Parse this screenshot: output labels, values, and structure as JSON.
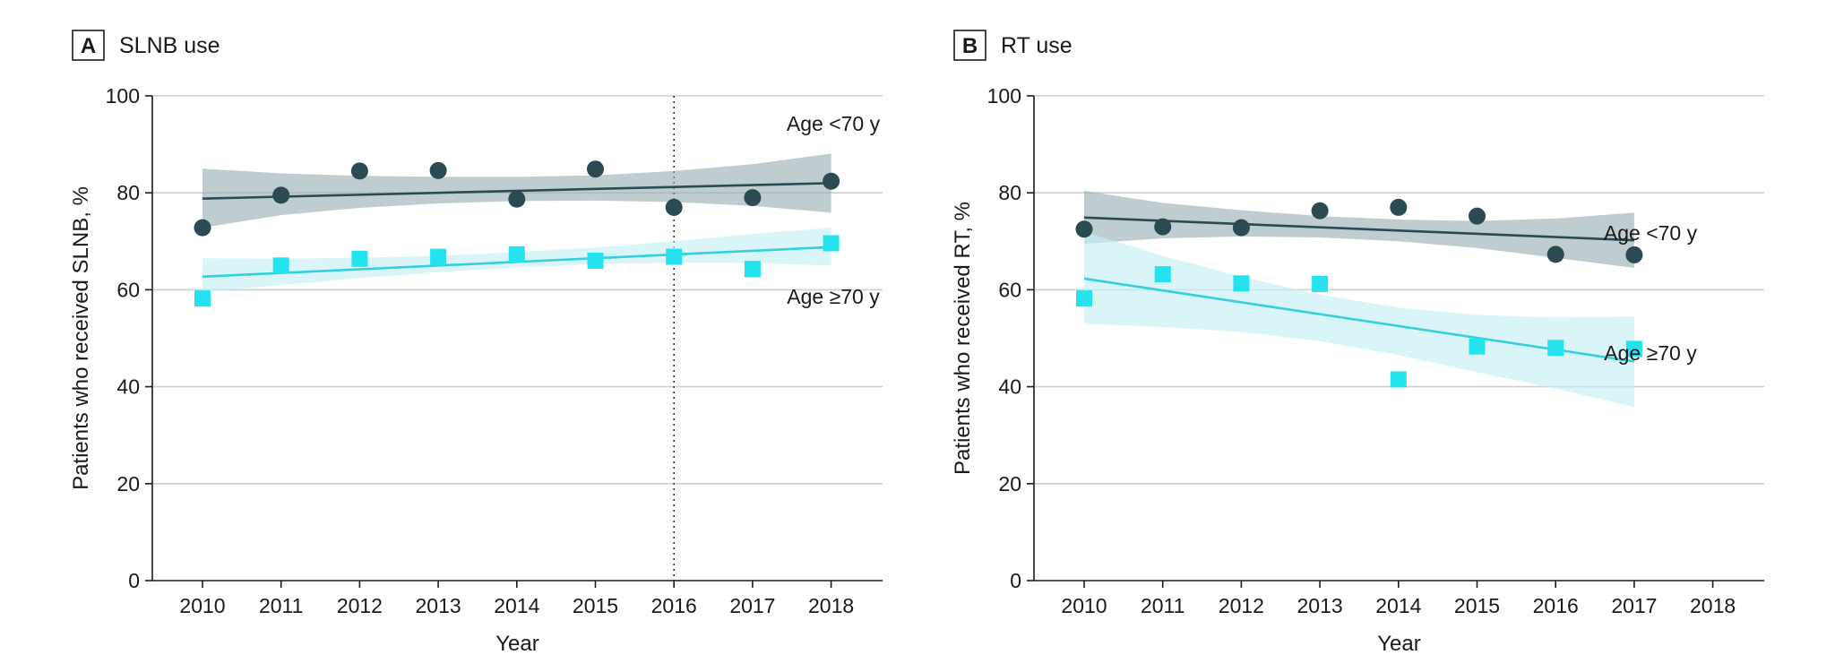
{
  "chart_data": [
    {
      "type": "scatter",
      "panel": "A",
      "title": "SLNB use",
      "xlabel": "Year",
      "ylabel": "Patients who received SLNB, %",
      "x": [
        2010,
        2011,
        2012,
        2013,
        2014,
        2015,
        2016,
        2017,
        2018
      ],
      "xlim": [
        2009.4,
        2018.7
      ],
      "ylim": [
        0,
        100
      ],
      "yticks": [
        0,
        20,
        40,
        60,
        80,
        100
      ],
      "grid": true,
      "reference_line_x": 2016,
      "series": [
        {
          "name": "Age <70 y",
          "marker": "circle",
          "color": "#2b4a52",
          "band_color": "#95aab0",
          "values": [
            72.8,
            79.5,
            84.5,
            84.6,
            78.7,
            84.9,
            77.0,
            79.0,
            82.4
          ],
          "trend": [
            78.8,
            82.0
          ],
          "band_lower": [
            72.8,
            75.4,
            76.9,
            77.8,
            78.3,
            78.4,
            78.1,
            77.3,
            75.9
          ],
          "band_upper": [
            85.0,
            84.0,
            83.5,
            83.3,
            83.3,
            83.6,
            84.5,
            85.9,
            88.1
          ]
        },
        {
          "name": "Age ≥70 y",
          "marker": "square",
          "color": "#24e3ee",
          "line_color": "#36cfdd",
          "band_color": "#c4eff5",
          "values": [
            58.2,
            65.0,
            66.4,
            66.8,
            67.3,
            66.0,
            66.8,
            64.3,
            69.6
          ],
          "trend": [
            62.7,
            68.8
          ],
          "band_lower": [
            59.5,
            61.0,
            62.4,
            63.6,
            64.6,
            65.3,
            65.6,
            65.5,
            65.0
          ],
          "band_upper": [
            66.5,
            66.4,
            66.6,
            67.0,
            67.8,
            68.7,
            70.0,
            71.5,
            72.8
          ]
        }
      ]
    },
    {
      "type": "scatter",
      "panel": "B",
      "title": "RT use",
      "xlabel": "Year",
      "ylabel": "Patients who received RT, %",
      "x": [
        2010,
        2011,
        2012,
        2013,
        2014,
        2015,
        2016,
        2017
      ],
      "xticks": [
        2010,
        2011,
        2012,
        2013,
        2014,
        2015,
        2016,
        2017,
        2018
      ],
      "xlim": [
        2009.4,
        2018.7
      ],
      "ylim": [
        0,
        100
      ],
      "yticks": [
        0,
        20,
        40,
        60,
        80,
        100
      ],
      "grid": true,
      "series": [
        {
          "name": "Age <70 y",
          "marker": "circle",
          "color": "#2b4a52",
          "band_color": "#95aab0",
          "values": [
            72.5,
            73.0,
            72.8,
            76.3,
            77.0,
            75.2,
            67.3,
            67.2
          ],
          "trend": [
            74.9,
            70.2
          ],
          "band_lower": [
            69.5,
            70.6,
            71.0,
            70.8,
            70.0,
            68.6,
            66.6,
            64.5
          ],
          "band_upper": [
            80.4,
            77.9,
            76.4,
            75.2,
            74.5,
            74.2,
            74.7,
            75.9
          ]
        },
        {
          "name": "Age ≥70 y",
          "marker": "square",
          "color": "#24e3ee",
          "line_color": "#36cfdd",
          "band_color": "#c4eff5",
          "values": [
            58.2,
            63.2,
            61.3,
            61.2,
            41.5,
            48.3,
            48.0,
            47.8
          ],
          "trend": [
            62.3,
            45.2
          ],
          "band_lower": [
            53.0,
            52.3,
            51.3,
            49.4,
            46.5,
            43.0,
            39.6,
            35.8
          ],
          "band_upper": [
            72.0,
            67.0,
            62.7,
            59.0,
            56.3,
            54.8,
            54.3,
            54.5
          ]
        }
      ]
    }
  ]
}
